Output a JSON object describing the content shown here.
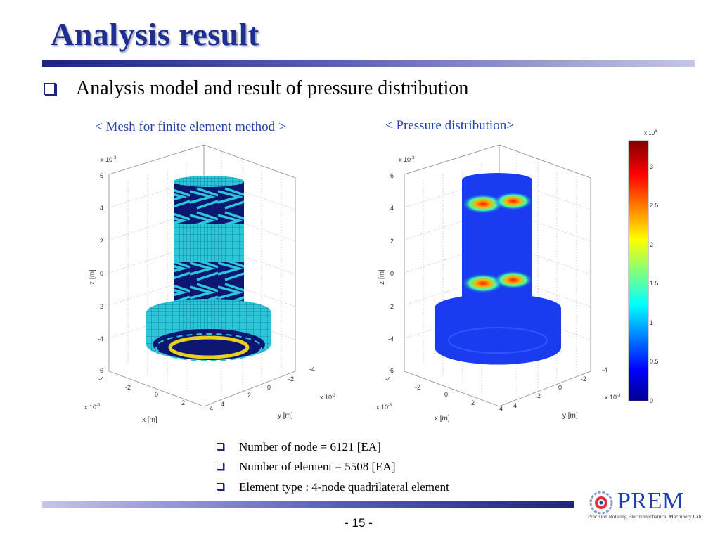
{
  "slide": {
    "title": "Analysis result",
    "subtitle": "Analysis model and result of pressure distribution",
    "caption_mesh": "< Mesh for finite element method >",
    "caption_pressure": "< Pressure distribution>",
    "info": [
      "Number of node =  6121 [EA]",
      "Number of element = 5508 [EA]",
      "Element type : 4-node quadrilateral element"
    ],
    "page_number": "- 15 -",
    "logo": {
      "name": "PREM",
      "subtitle": "Precision Rotating Electromechanical Machinery Lab."
    }
  },
  "plot": {
    "z_exponent": "x 10",
    "z_exp_power": "-3",
    "z_label": "z [m]",
    "x_label": "x [m]",
    "y_label": "y [m]",
    "z_ticks": [
      "6",
      "4",
      "2",
      "0",
      "-2",
      "-4",
      "-6"
    ],
    "x_ticks": [
      "-4",
      "-2",
      "0",
      "2",
      "4"
    ],
    "y_ticks": [
      "-4",
      "-2",
      "0",
      "2",
      "4"
    ]
  },
  "colorbar": {
    "exponent": "x 10",
    "exp_power": "6",
    "ticks": [
      "3",
      "2.5",
      "2",
      "1.5",
      "1",
      "0.5",
      "0"
    ]
  },
  "colors": {
    "title": "#1f2f8f",
    "caption": "#1f3fb0",
    "mesh_cyan": "#29c4d8",
    "mesh_dark": "#0d1670",
    "pressure_blue": "#1a3cf0"
  }
}
